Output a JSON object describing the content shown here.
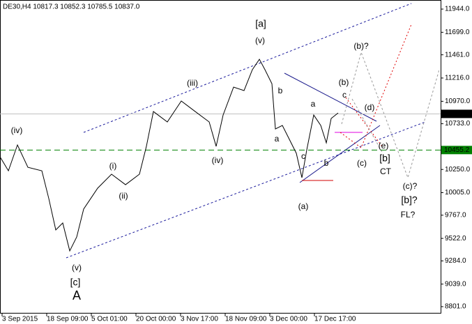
{
  "chart_data": {
    "type": "line",
    "title": "DE30,H4  10817.3 10852.3 10785.5 10837.0",
    "x": [
      -0.047,
      0.141,
      0.344,
      0.578,
      0.891,
      1.047,
      1.203,
      1.359,
      1.516,
      1.672,
      1.828,
      2.141,
      2.453,
      2.766,
      3.078,
      3.234,
      3.391,
      3.703,
      4.016,
      4.328,
      4.641,
      4.797,
      4.953,
      5.188,
      5.422,
      5.609,
      5.766,
      5.891,
      6.047,
      6.125,
      6.281,
      6.438,
      6.594,
      6.719,
      6.828,
      6.984,
      7.141,
      7.266,
      7.375,
      7.531
    ],
    "series": [
      {
        "name": "DE30",
        "color": "#000000",
        "values": [
          10384,
          10236,
          10509,
          10273,
          10236,
          9942,
          9611,
          9685,
          9390,
          9537,
          9832,
          10052,
          10200,
          10089,
          10200,
          10494,
          10862,
          10752,
          10973,
          10862,
          10752,
          10494,
          10825,
          11120,
          11083,
          11304,
          11414,
          11304,
          11156,
          10678,
          10715,
          10568,
          10421,
          10163,
          10457,
          10825,
          10715,
          10531,
          10789,
          10847
        ]
      }
    ],
    "xlim": [
      -0.047,
      9.828
    ],
    "xticks": [
      {
        "value": 0,
        "label": "3 Sep 2015"
      },
      {
        "value": 1,
        "label": "18 Sep 09:00"
      },
      {
        "value": 2,
        "label": "5 Oct 01:00"
      },
      {
        "value": 3,
        "label": "20 Oct 00:00"
      },
      {
        "value": 4,
        "label": "3 Nov 17:00"
      },
      {
        "value": 5,
        "label": "18 Nov 09:00"
      },
      {
        "value": 6,
        "label": "3 Dec 00:00"
      },
      {
        "value": 7,
        "label": "17 Dec 17:00"
      }
    ],
    "ylim": [
      8728,
      12040
    ],
    "yticks": [
      {
        "value": 11944,
        "label": "11944.0"
      },
      {
        "value": 11699,
        "label": "11699.0"
      },
      {
        "value": 11461,
        "label": "11461.0"
      },
      {
        "value": 11216,
        "label": "11216.0"
      },
      {
        "value": 10970,
        "label": "10970.0"
      },
      {
        "value": 10733,
        "label": "10733.0"
      },
      {
        "value": 10250,
        "label": "10250.0"
      },
      {
        "value": 10005,
        "label": "10005.0"
      },
      {
        "value": 9767,
        "label": "9767.0"
      },
      {
        "value": 9522,
        "label": "9522.0"
      },
      {
        "value": 9284,
        "label": "9284.0"
      },
      {
        "value": 9039,
        "label": "9039.0"
      },
      {
        "value": 8801,
        "label": "8801.0"
      }
    ],
    "hlines": [
      {
        "value": 10837,
        "label": "10837.0",
        "color": "#c0c0c0"
      },
      {
        "value": 10455.2,
        "color": "#008000"
      }
    ],
    "annotations": [
      "(iv)",
      "(i)",
      "(ii)",
      "(iii)",
      "(iv)",
      "(v)",
      "[a]",
      "(v)",
      "[c]",
      "A",
      "b",
      "a",
      "c",
      "(a)",
      "a",
      "b",
      "c",
      "(b)",
      "(d)",
      "(e)",
      "(c)",
      "[b]",
      "CT",
      "(b)?",
      "(c)?",
      "[b]?",
      "FL?"
    ]
  }
}
